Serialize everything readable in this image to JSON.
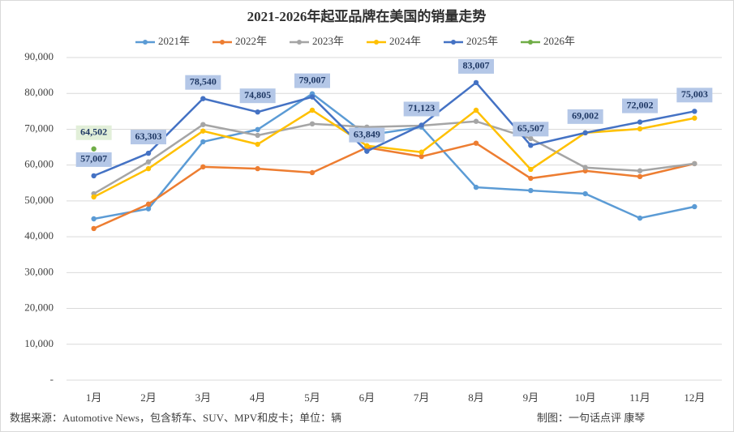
{
  "chart_data": {
    "type": "line",
    "title": "2021-2026年起亚品牌在美国的销量走势",
    "categories": [
      "1月",
      "2月",
      "3月",
      "4月",
      "5月",
      "6月",
      "7月",
      "8月",
      "9月",
      "10月",
      "11月",
      "12月"
    ],
    "series": [
      {
        "name": "2021年",
        "color": "#5b9bd5",
        "values": [
          45000,
          47800,
          66500,
          69900,
          79900,
          68300,
          70600,
          53800,
          52900,
          52000,
          45200,
          48400
        ]
      },
      {
        "name": "2022年",
        "color": "#ed7d31",
        "values": [
          42300,
          49100,
          59500,
          59000,
          57900,
          64900,
          62400,
          66100,
          56300,
          58400,
          56800,
          60400
        ]
      },
      {
        "name": "2023年",
        "color": "#a5a5a5",
        "values": [
          52000,
          60900,
          71300,
          68300,
          71500,
          70600,
          71000,
          72200,
          67400,
          59300,
          58400,
          60400
        ]
      },
      {
        "name": "2024年",
        "color": "#ffc000",
        "values": [
          51100,
          59000,
          69500,
          65800,
          75300,
          65400,
          63600,
          75300,
          58800,
          69000,
          70100,
          73100
        ]
      },
      {
        "name": "2025年",
        "color": "#4472c4",
        "values": [
          57007,
          63303,
          78540,
          74805,
          79007,
          63849,
          71123,
          83007,
          65507,
          69002,
          72002,
          75003
        ],
        "value_labels": [
          "57,007",
          "63,303",
          "78,540",
          "74,805",
          "79,007",
          "63,849",
          "71,123",
          "83,007",
          "65,507",
          "69,002",
          "72,002",
          "75,003"
        ]
      },
      {
        "name": "2026年",
        "color": "#70ad47",
        "values": [
          64502,
          null,
          null,
          null,
          null,
          null,
          null,
          null,
          null,
          null,
          null,
          null
        ],
        "value_labels": [
          "64,502",
          null,
          null,
          null,
          null,
          null,
          null,
          null,
          null,
          null,
          null,
          null
        ]
      }
    ],
    "ylim": [
      0,
      90000
    ],
    "yticks": [
      {
        "value": 0,
        "label": "-"
      },
      {
        "value": 10000,
        "label": "10,000"
      },
      {
        "value": 20000,
        "label": "20,000"
      },
      {
        "value": 30000,
        "label": "30,000"
      },
      {
        "value": 40000,
        "label": "40,000"
      },
      {
        "value": 50000,
        "label": "50,000"
      },
      {
        "value": 60000,
        "label": "60,000"
      },
      {
        "value": 70000,
        "label": "70,000"
      },
      {
        "value": 80000,
        "label": "80,000"
      },
      {
        "value": 90000,
        "label": "90,000"
      }
    ],
    "grid": true,
    "legend": "top",
    "source": "数据来源：Automotive News，包含轿车、SUV、MPV和皮卡；单位：辆",
    "credit": "制图：一句话点评  康琴"
  }
}
